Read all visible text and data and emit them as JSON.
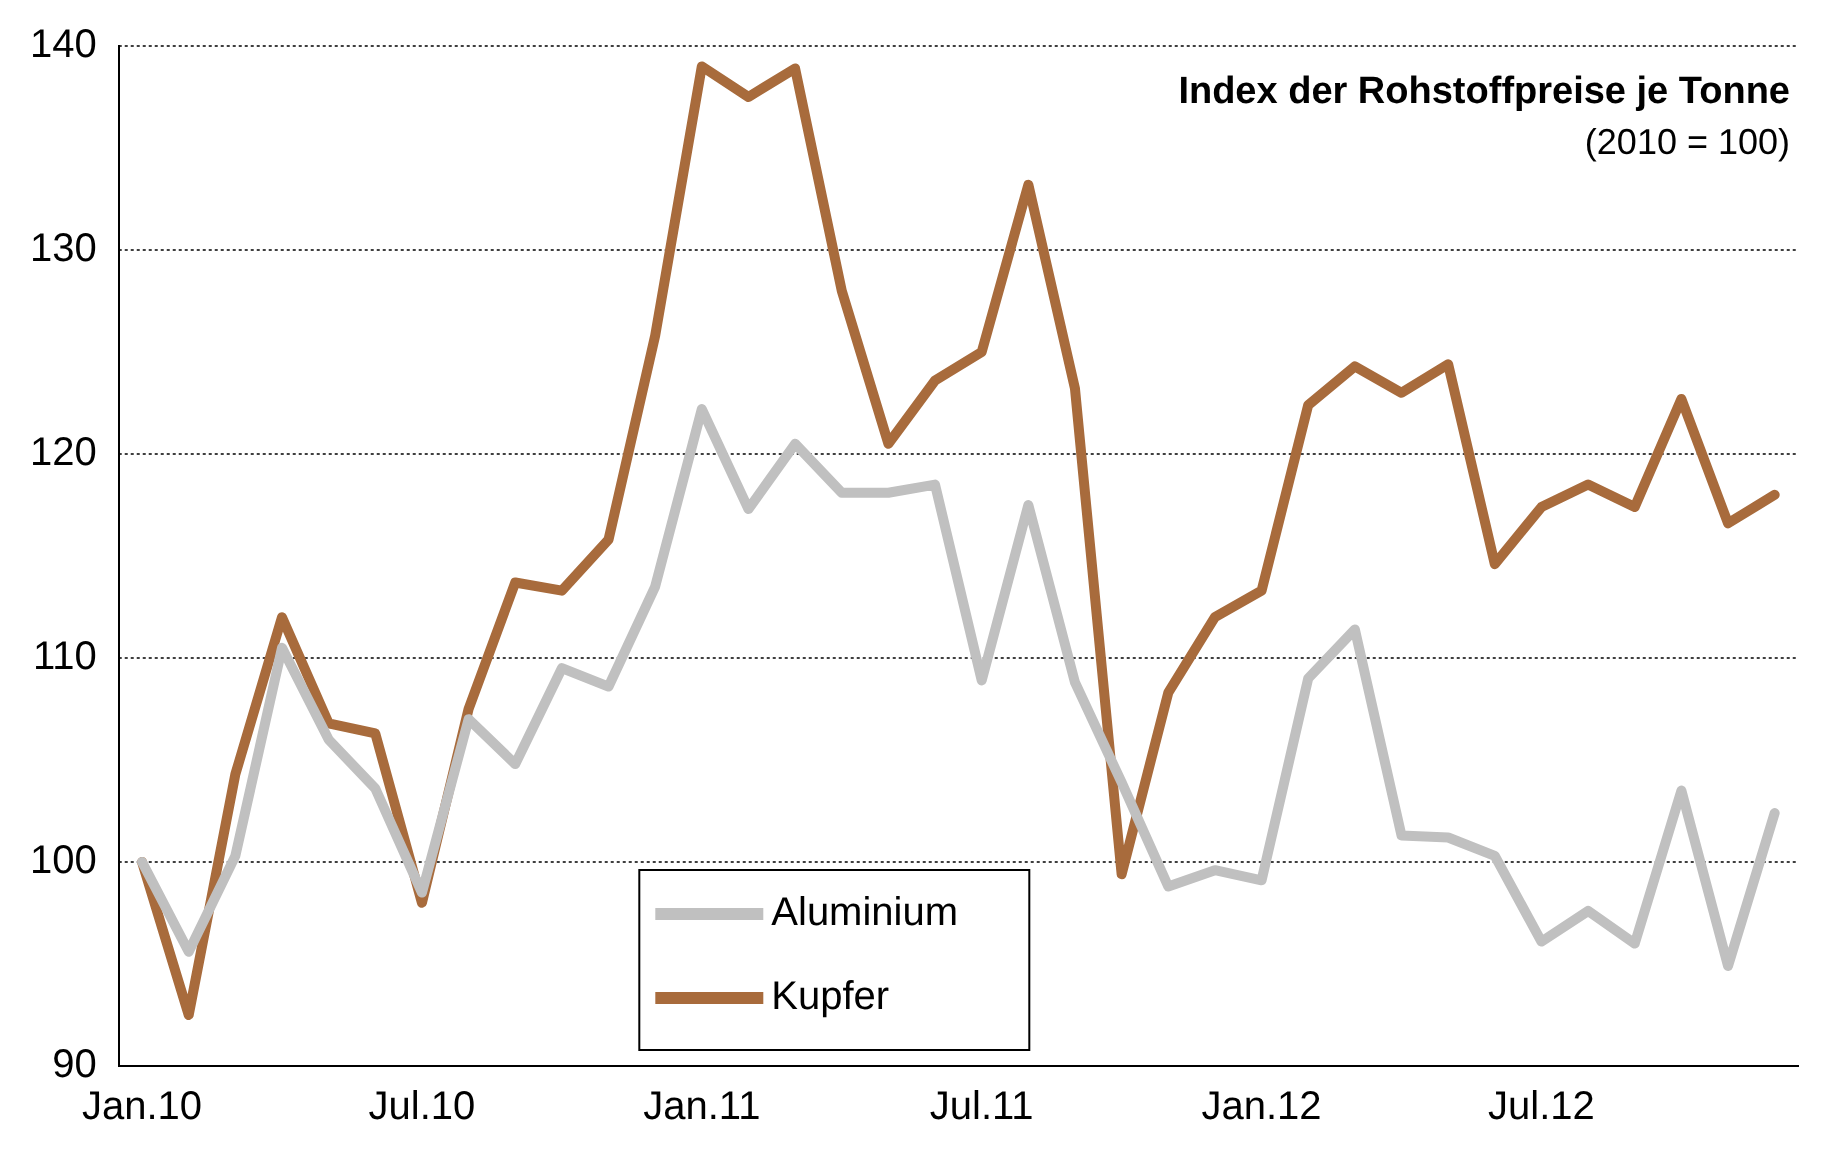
{
  "chart_data": {
    "type": "line",
    "title": "Index der Rohstoffpreise je Tonne",
    "subtitle": "(2010 = 100)",
    "categories": [
      "Jan.10",
      null,
      null,
      null,
      null,
      null,
      "Jul.10",
      null,
      null,
      null,
      null,
      null,
      "Jan.11",
      null,
      null,
      null,
      null,
      null,
      "Jul.11",
      null,
      null,
      null,
      null,
      null,
      "Jan.12",
      null,
      null,
      null,
      null,
      null,
      "Jul.12",
      null,
      null,
      null,
      null,
      null
    ],
    "series": [
      {
        "name": "Aluminium",
        "color": "#c0c0c0",
        "values": [
          100,
          95.6,
          100.3,
          110.5,
          106,
          103.6,
          98.5,
          107,
          104.8,
          109.5,
          108.6,
          113.5,
          122.2,
          117.3,
          120.5,
          118.1,
          118.1,
          118.5,
          108.9,
          117.5,
          108.8,
          103.9,
          98.8,
          99.6,
          99.1,
          109,
          111.4,
          101.3,
          101.2,
          100.3,
          96.1,
          97.6,
          96,
          103.5,
          94.9,
          102.4
        ]
      },
      {
        "name": "Kupfer",
        "color": "#a86b3c",
        "values": [
          100,
          92.5,
          104.3,
          112,
          106.8,
          106.3,
          98,
          107.5,
          113.7,
          113.3,
          115.8,
          125.8,
          139,
          137.5,
          138.9,
          128,
          120.5,
          123.6,
          125,
          133.2,
          123.2,
          99.4,
          108.3,
          112,
          113.3,
          122.4,
          124.3,
          123,
          124.4,
          114.6,
          117.4,
          118.5,
          117.4,
          122.7,
          116.6,
          118
        ]
      }
    ],
    "ylim": [
      90,
      140
    ],
    "yticks": [
      90,
      100,
      110,
      120,
      130,
      140
    ],
    "grid": "y",
    "legend": "bottom",
    "marker": "none",
    "line_style": "solid"
  }
}
